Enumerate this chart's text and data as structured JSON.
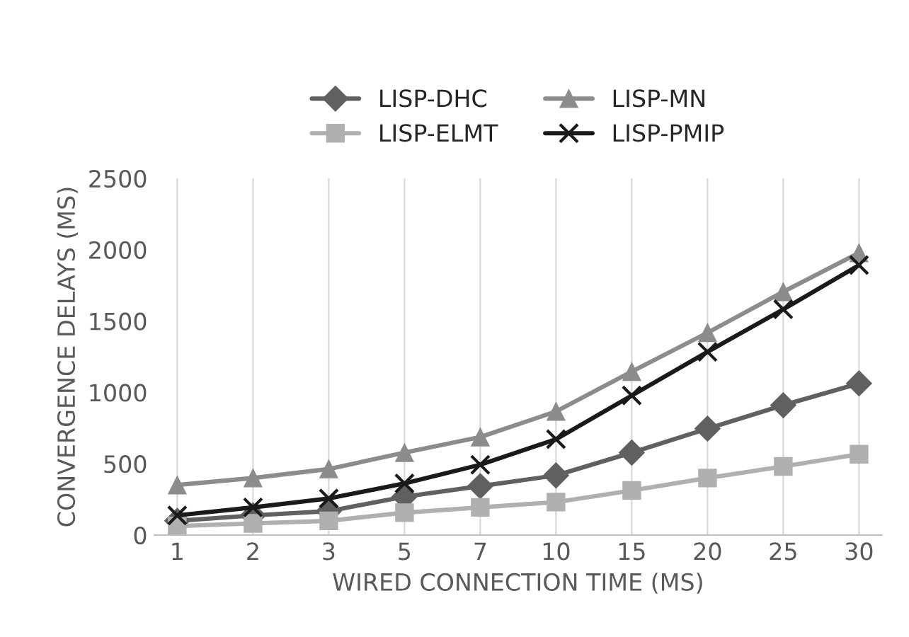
{
  "chart_data": {
    "type": "line",
    "xlabel": "WIRED CONNECTION TIME (MS)",
    "ylabel": "CONVERGENCE DELAYS (MS)",
    "categories": [
      "1",
      "2",
      "3",
      "5",
      "7",
      "10",
      "15",
      "20",
      "25",
      "30"
    ],
    "series": [
      {
        "name": "LISP-DHC",
        "color": "#606060",
        "marker": "diamond",
        "values": [
          100,
          138,
          168,
          269,
          343,
          418,
          578,
          746,
          910,
          1063
        ]
      },
      {
        "name": "LISP-ELMT",
        "color": "#b0b0b0",
        "marker": "square",
        "values": [
          63,
          82,
          100,
          157,
          194,
          231,
          313,
          400,
          481,
          567
        ]
      },
      {
        "name": "LISP-MN",
        "color": "#8c8c8c",
        "marker": "triangle",
        "values": [
          351,
          400,
          463,
          578,
          687,
          866,
          1146,
          1418,
          1705,
          1978
        ]
      },
      {
        "name": "LISP-PMIP",
        "color": "#1a1a1a",
        "marker": "cross",
        "values": [
          138,
          194,
          257,
          362,
          493,
          672,
          978,
          1284,
          1582,
          1892
        ]
      }
    ],
    "ylim": [
      0,
      2500
    ],
    "yticks": [
      0,
      500,
      1000,
      1500,
      2000,
      2500
    ],
    "grid": "x",
    "legend": "top"
  }
}
